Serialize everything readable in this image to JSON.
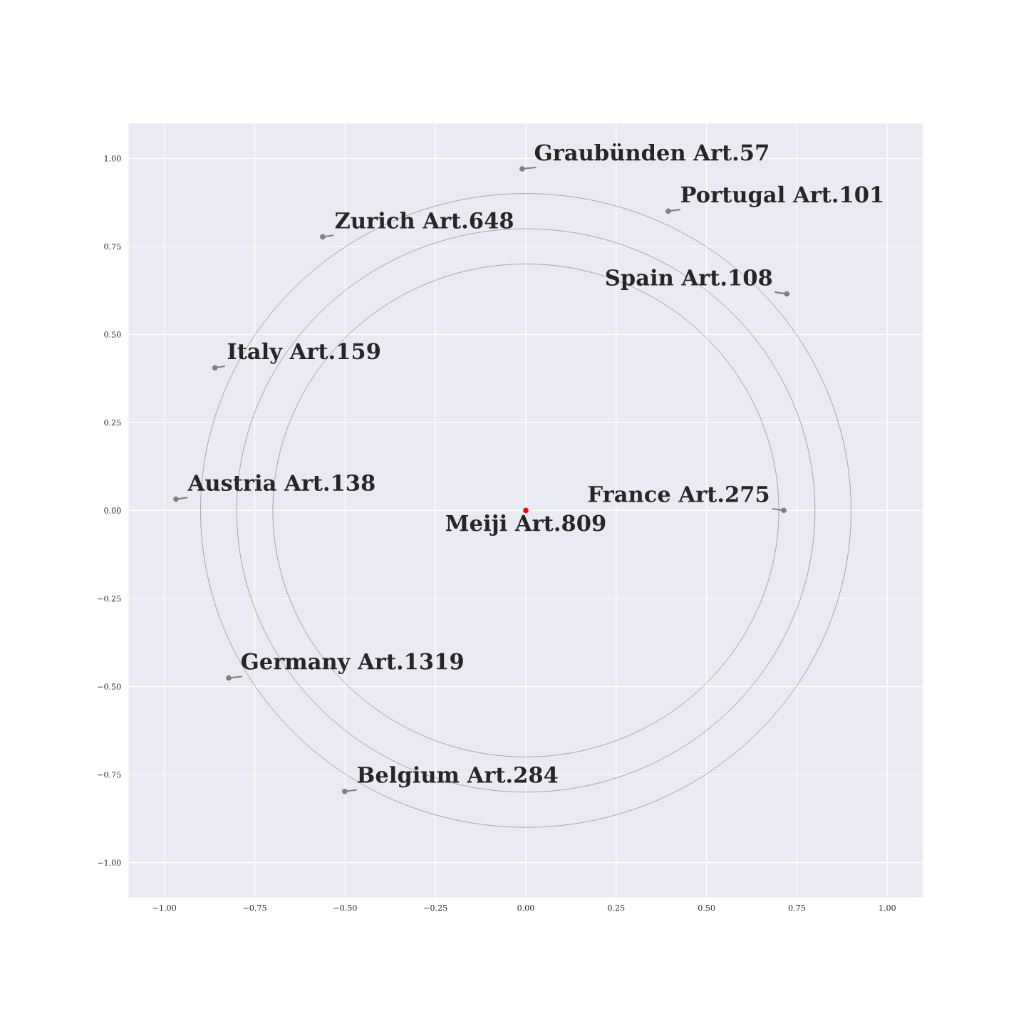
{
  "chart_data": {
    "type": "scatter",
    "xlim": [
      -1.1,
      1.1
    ],
    "ylim": [
      -1.1,
      1.1
    ],
    "xticks": [
      {
        "value": -1,
        "label": "−1.00"
      },
      {
        "value": -0.75,
        "label": "−0.75"
      },
      {
        "value": -0.5,
        "label": "−0.50"
      },
      {
        "value": -0.25,
        "label": "−0.25"
      },
      {
        "value": 0,
        "label": "0.00"
      },
      {
        "value": 0.25,
        "label": "0.25"
      },
      {
        "value": 0.5,
        "label": "0.50"
      },
      {
        "value": 0.75,
        "label": "0.75"
      },
      {
        "value": 1,
        "label": "1.00"
      }
    ],
    "yticks": [
      {
        "value": -1,
        "label": "−1.00"
      },
      {
        "value": -0.75,
        "label": "−0.75"
      },
      {
        "value": -0.5,
        "label": "−0.50"
      },
      {
        "value": -0.25,
        "label": "−0.25"
      },
      {
        "value": 0,
        "label": "0.00"
      },
      {
        "value": 0.25,
        "label": "0.25"
      },
      {
        "value": 0.5,
        "label": "0.50"
      },
      {
        "value": 0.75,
        "label": "0.75"
      },
      {
        "value": 1,
        "label": "1.00"
      }
    ],
    "grid": true,
    "series": [
      {
        "type": "scatter",
        "x": [
          -0.01,
          0.394,
          -0.562,
          0.722,
          -0.86,
          -0.968,
          0.714,
          0,
          -0.822,
          -0.501
        ],
        "values": [
          0.97,
          0.85,
          0.777,
          0.615,
          0.405,
          0.032,
          0,
          0,
          -0.476,
          -0.798
        ],
        "colors": [
          "#808080",
          "#808080",
          "#808080",
          "#808080",
          "#808080",
          "#808080",
          "#808080",
          "#ff0000",
          "#808080",
          "#808080"
        ]
      }
    ],
    "annotations": [
      {
        "text": "Graubünden Art.57",
        "x": -0.01,
        "y": 0.97
      },
      {
        "text": "Portugal Art.101",
        "x": 0.394,
        "y": 0.85
      },
      {
        "text": "Zurich Art.648",
        "x": -0.562,
        "y": 0.777
      },
      {
        "text": "Spain Art.108",
        "x": 0.722,
        "y": 0.615
      },
      {
        "text": "Italy Art.159",
        "x": -0.86,
        "y": 0.405
      },
      {
        "text": "Austria Art.138",
        "x": -0.968,
        "y": 0.032
      },
      {
        "text": "France Art.275",
        "x": 0.714,
        "y": 0
      },
      {
        "text": "Meiji Art.809",
        "x": 0,
        "y": 0
      },
      {
        "text": "Germany Art.1319",
        "x": -0.822,
        "y": -0.476
      },
      {
        "text": "Belgium Art.284",
        "x": -0.501,
        "y": -0.798
      }
    ]
  }
}
